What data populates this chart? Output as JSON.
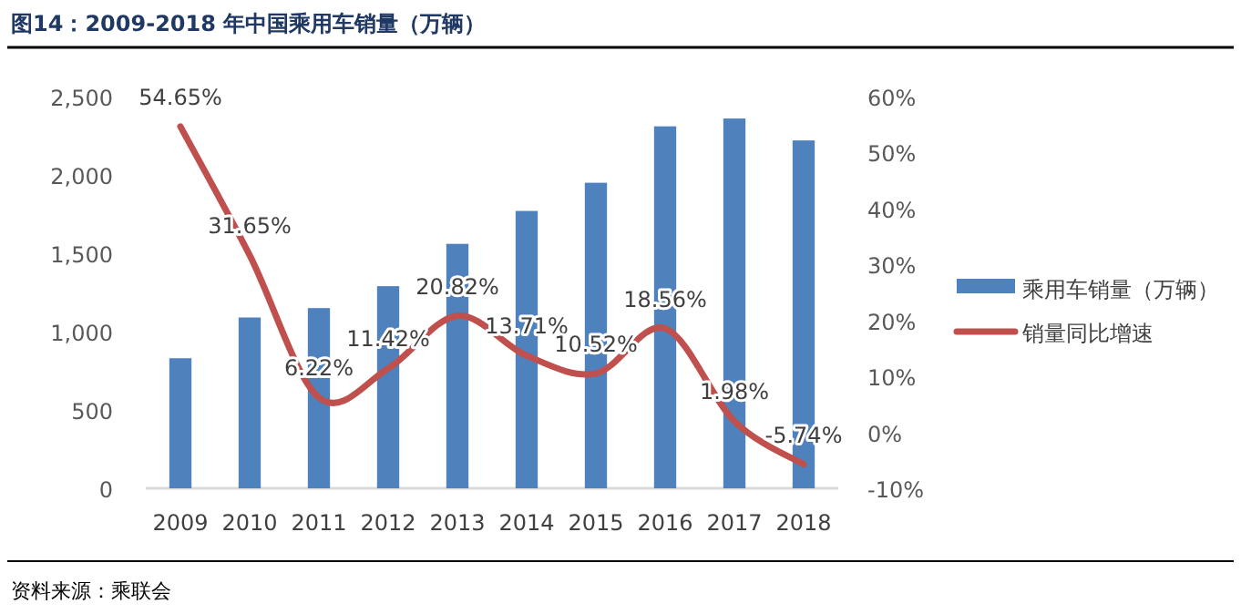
{
  "chart_data": {
    "type": "bar",
    "title": "图14：2009-2018 年中国乘用车销量（万辆）",
    "categories": [
      "2009",
      "2010",
      "2011",
      "2012",
      "2013",
      "2014",
      "2015",
      "2016",
      "2017",
      "2018"
    ],
    "series": [
      {
        "name": "乘用车销量（万辆）",
        "color": "#4f81bd",
        "values": [
          830,
          1090,
          1150,
          1290,
          1560,
          1770,
          1950,
          2310,
          2360,
          2220
        ]
      },
      {
        "name": "销量同比增速",
        "type": "line",
        "axis": "y2",
        "color": "#c0504d",
        "values": [
          54.65,
          31.65,
          6.22,
          11.42,
          20.82,
          13.71,
          10.52,
          18.56,
          1.98,
          -5.74
        ],
        "value_labels": [
          "54.65%",
          "31.65%",
          "6.22%",
          "11.42%",
          "20.82%",
          "13.71%",
          "10.52%",
          "18.56%",
          "1.98%",
          "-5.74%"
        ]
      }
    ],
    "ylim": [
      0,
      2500
    ],
    "yticks": [
      {
        "value": 0,
        "label": "0"
      },
      {
        "value": 500,
        "label": "500"
      },
      {
        "value": 1000,
        "label": "1,000"
      },
      {
        "value": 1500,
        "label": "1,500"
      },
      {
        "value": 2000,
        "label": "2,000"
      },
      {
        "value": 2500,
        "label": "2,500"
      }
    ],
    "y2lim": [
      -10,
      60
    ],
    "y2ticks": [
      {
        "value": -10,
        "label": "-10%"
      },
      {
        "value": 0,
        "label": "0%"
      },
      {
        "value": 10,
        "label": "10%"
      },
      {
        "value": 20,
        "label": "20%"
      },
      {
        "value": 30,
        "label": "30%"
      },
      {
        "value": 40,
        "label": "40%"
      },
      {
        "value": 50,
        "label": "50%"
      },
      {
        "value": 60,
        "label": "60%"
      }
    ],
    "grid": false,
    "legend": "right",
    "annotations": [
      "资料来源：乘联会"
    ]
  }
}
